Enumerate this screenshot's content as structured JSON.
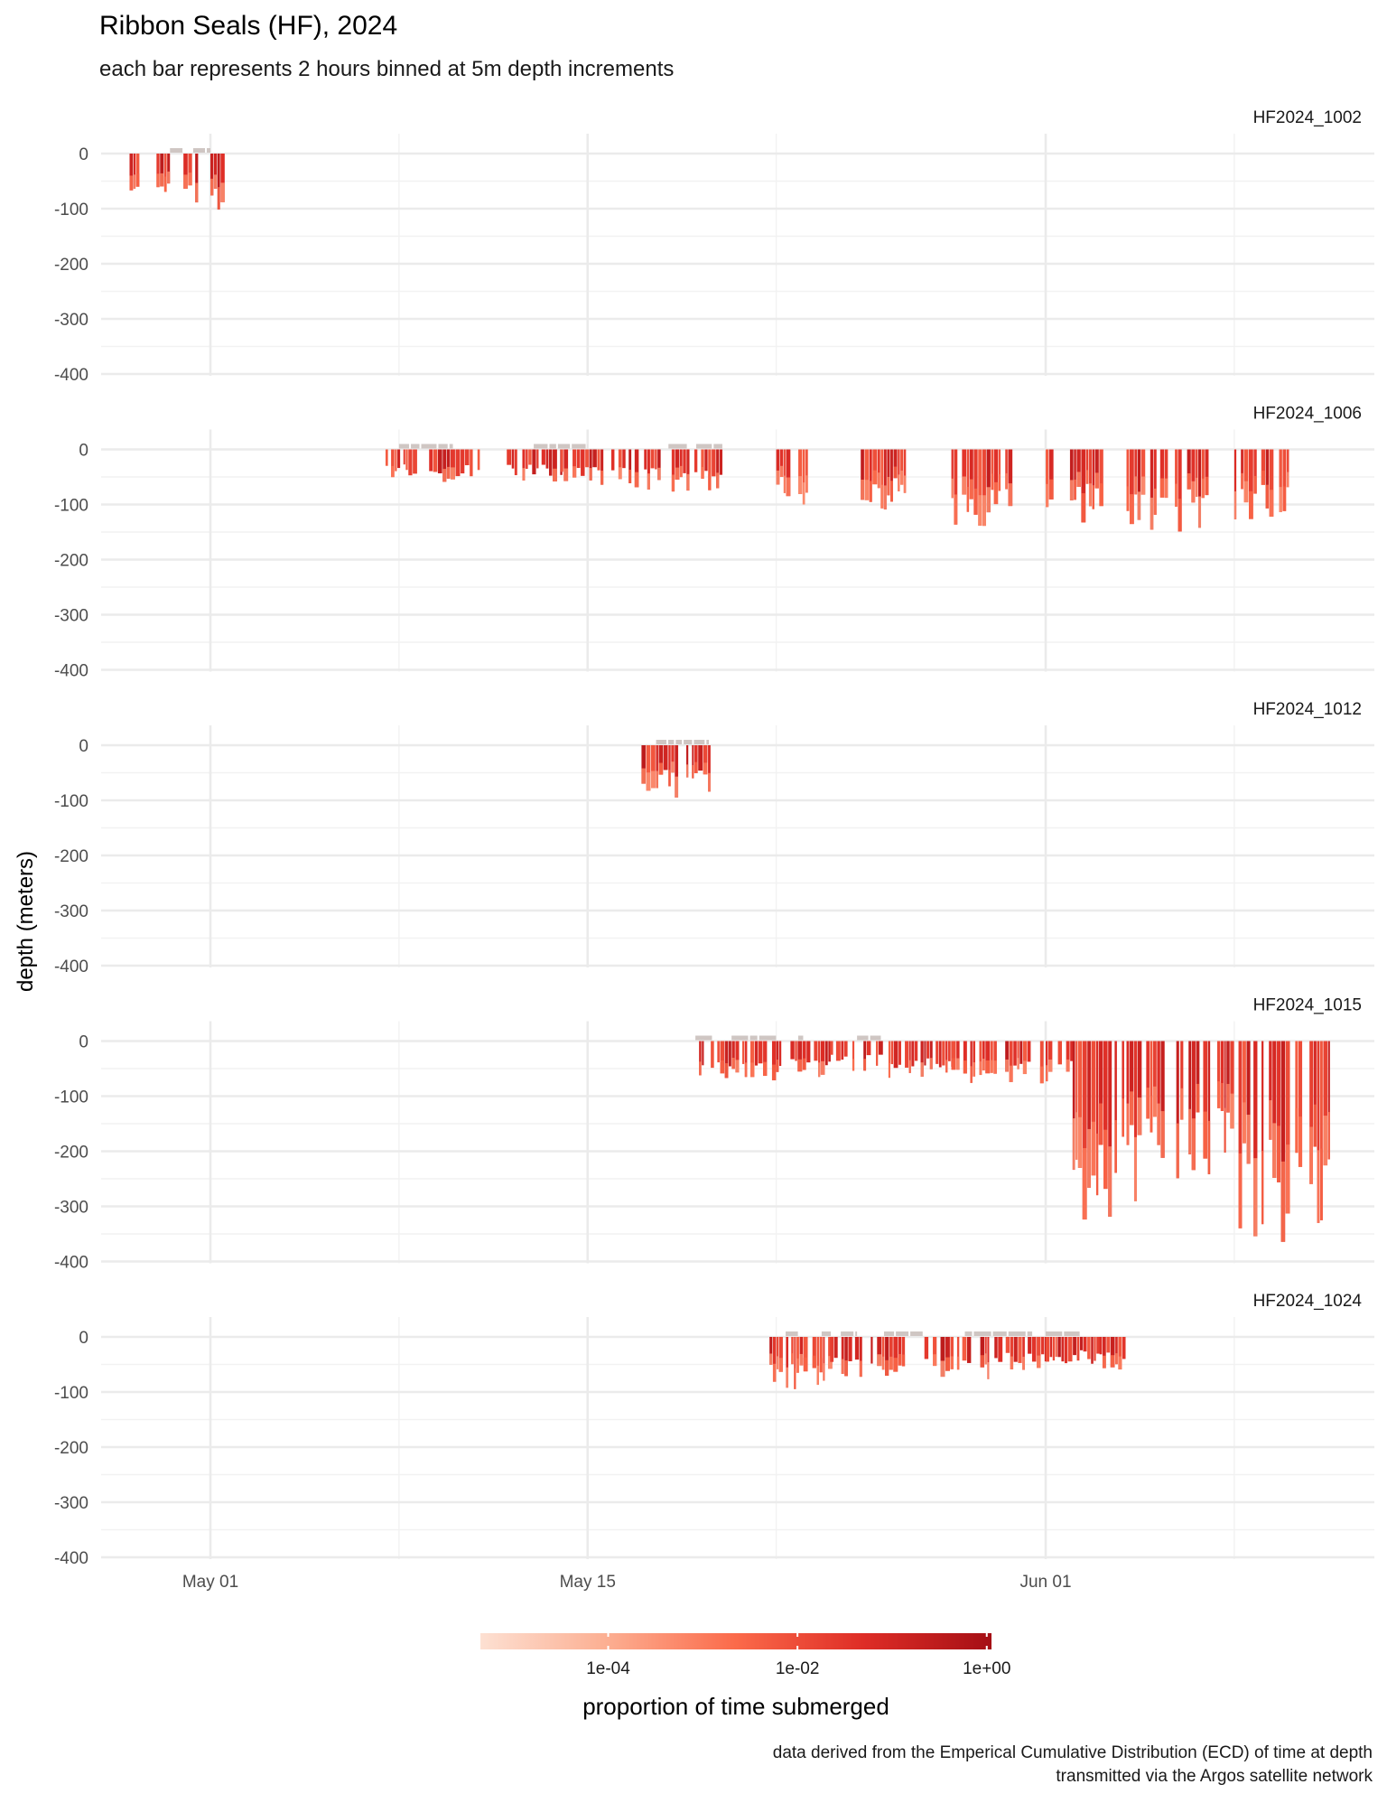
{
  "chart_data": {
    "type": "bar",
    "title": "Ribbon Seals (HF), 2024",
    "subtitle": "each bar represents 2 hours binned at 5m depth increments",
    "ylabel": "depth (meters)",
    "ylim": [
      -400,
      0
    ],
    "yticks": [
      "0",
      "-100",
      "-200",
      "-300",
      "-400"
    ],
    "y_tick_values": [
      0,
      -100,
      -200,
      -300,
      -400
    ],
    "x_range": [
      "2024-04-28",
      "2024-06-12"
    ],
    "xticks": [
      {
        "date": "2024-05-01",
        "label": "May 01"
      },
      {
        "date": "2024-05-15",
        "label": "May 15"
      },
      {
        "date": "2024-06-01",
        "label": "Jun 01"
      }
    ],
    "x_minor_dates": [
      "2024-05-08",
      "2024-05-22",
      "2024-06-08"
    ],
    "grid": true,
    "color_scale": {
      "title": "proportion of time submerged",
      "scale": "log10",
      "colors": [
        "#fde0d2",
        "#fcae91",
        "#fb6a4a",
        "#de2d26",
        "#a50f15"
      ],
      "tick_labels": [
        "1e-04",
        "1e-02",
        "1e+00"
      ],
      "tick_values": [
        0.0001,
        0.01,
        1
      ],
      "position": "bottom"
    },
    "caption": [
      "data derived from the Emperical Cumulative Distribution (ECD) of time at depth",
      "transmitted via the Argos satellite network"
    ],
    "panels": [
      {
        "name": "HF2024_1002",
        "surface_segments": [
          [
            "2024-04-29T12:00",
            "2024-05-01T00:00"
          ]
        ],
        "dive_clusters": [
          {
            "start": "2024-04-28T00:00",
            "end": "2024-04-28T12:00",
            "max_depth": -110
          },
          {
            "start": "2024-04-29T00:00",
            "end": "2024-04-29T12:00",
            "max_depth": -110
          },
          {
            "start": "2024-04-30T00:00",
            "end": "2024-04-30T12:00",
            "max_depth": -110
          },
          {
            "start": "2024-05-01T00:00",
            "end": "2024-05-01T12:00",
            "max_depth": -110
          }
        ]
      },
      {
        "name": "HF2024_1006",
        "surface_segments": [
          [
            "2024-05-08T00:00",
            "2024-05-10T00:00"
          ],
          [
            "2024-05-13T00:00",
            "2024-05-15T00:00"
          ],
          [
            "2024-05-18T00:00",
            "2024-05-20T00:00"
          ]
        ],
        "dive_clusters": [
          {
            "start": "2024-05-07T12:00",
            "end": "2024-05-09T00:00",
            "max_depth": -55
          },
          {
            "start": "2024-05-09T00:00",
            "end": "2024-05-11T00:00",
            "max_depth": -60
          },
          {
            "start": "2024-05-12T00:00",
            "end": "2024-05-14T00:00",
            "max_depth": -60
          },
          {
            "start": "2024-05-14T00:00",
            "end": "2024-05-16T00:00",
            "max_depth": -65
          },
          {
            "start": "2024-05-16T00:00",
            "end": "2024-05-18T00:00",
            "max_depth": -75
          },
          {
            "start": "2024-05-18T00:00",
            "end": "2024-05-20T00:00",
            "max_depth": -85
          },
          {
            "start": "2024-05-22T00:00",
            "end": "2024-05-23T06:00",
            "max_depth": -100
          },
          {
            "start": "2024-05-25T00:00",
            "end": "2024-05-27T00:00",
            "max_depth": -110
          },
          {
            "start": "2024-05-28T12:00",
            "end": "2024-05-31T00:00",
            "max_depth": -140
          },
          {
            "start": "2024-06-01T00:00",
            "end": "2024-06-03T00:00",
            "max_depth": -135
          },
          {
            "start": "2024-06-04T00:00",
            "end": "2024-06-07T00:00",
            "max_depth": -150
          },
          {
            "start": "2024-06-08T00:00",
            "end": "2024-06-10T00:00",
            "max_depth": -140
          }
        ]
      },
      {
        "name": "HF2024_1012",
        "surface_segments": [
          [
            "2024-05-17T00:00",
            "2024-05-19T12:00"
          ]
        ],
        "dive_clusters": [
          {
            "start": "2024-05-17T00:00",
            "end": "2024-05-18T00:00",
            "max_depth": -90
          },
          {
            "start": "2024-05-18T00:00",
            "end": "2024-05-19T12:00",
            "max_depth": -100
          }
        ]
      },
      {
        "name": "HF2024_1015",
        "surface_segments": [
          [
            "2024-05-19T00:00",
            "2024-05-23T00:00"
          ],
          [
            "2024-05-25T00:00",
            "2024-05-27T00:00"
          ]
        ],
        "dive_clusters": [
          {
            "start": "2024-05-19T00:00",
            "end": "2024-05-22T00:00",
            "max_depth": -80
          },
          {
            "start": "2024-05-22T00:00",
            "end": "2024-05-24T00:00",
            "max_depth": -70
          },
          {
            "start": "2024-05-24T00:00",
            "end": "2024-05-26T00:00",
            "max_depth": -55
          },
          {
            "start": "2024-05-26T00:00",
            "end": "2024-05-28T12:00",
            "max_depth": -70
          },
          {
            "start": "2024-05-28T12:00",
            "end": "2024-06-01T00:00",
            "max_depth": -80
          },
          {
            "start": "2024-06-01T00:00",
            "end": "2024-06-02T00:00",
            "max_depth": -80
          },
          {
            "start": "2024-06-02T00:00",
            "end": "2024-06-04T00:00",
            "max_depth": -365
          },
          {
            "start": "2024-06-04T00:00",
            "end": "2024-06-06T00:00",
            "max_depth": -295
          },
          {
            "start": "2024-06-06T00:00",
            "end": "2024-06-08T00:00",
            "max_depth": -250
          },
          {
            "start": "2024-06-08T00:00",
            "end": "2024-06-10T00:00",
            "max_depth": -375
          },
          {
            "start": "2024-06-10T00:00",
            "end": "2024-06-11T12:00",
            "max_depth": -390
          }
        ]
      },
      {
        "name": "HF2024_1024",
        "surface_segments": [
          [
            "2024-05-22T00:00",
            "2024-05-25T00:00"
          ],
          [
            "2024-05-26T00:00",
            "2024-05-27T12:00"
          ],
          [
            "2024-05-29T00:00",
            "2024-05-31T12:00"
          ],
          [
            "2024-06-01T00:00",
            "2024-06-03T00:00"
          ]
        ],
        "dive_clusters": [
          {
            "start": "2024-05-21T18:00",
            "end": "2024-05-24T00:00",
            "max_depth": -95
          },
          {
            "start": "2024-05-24T00:00",
            "end": "2024-05-26T18:00",
            "max_depth": -80
          },
          {
            "start": "2024-05-27T12:00",
            "end": "2024-05-30T00:00",
            "max_depth": -80
          },
          {
            "start": "2024-05-30T00:00",
            "end": "2024-06-01T00:00",
            "max_depth": -60
          },
          {
            "start": "2024-06-01T00:00",
            "end": "2024-06-03T00:00",
            "max_depth": -50
          },
          {
            "start": "2024-06-03T00:00",
            "end": "2024-06-04T00:00",
            "max_depth": -60
          }
        ]
      }
    ]
  }
}
